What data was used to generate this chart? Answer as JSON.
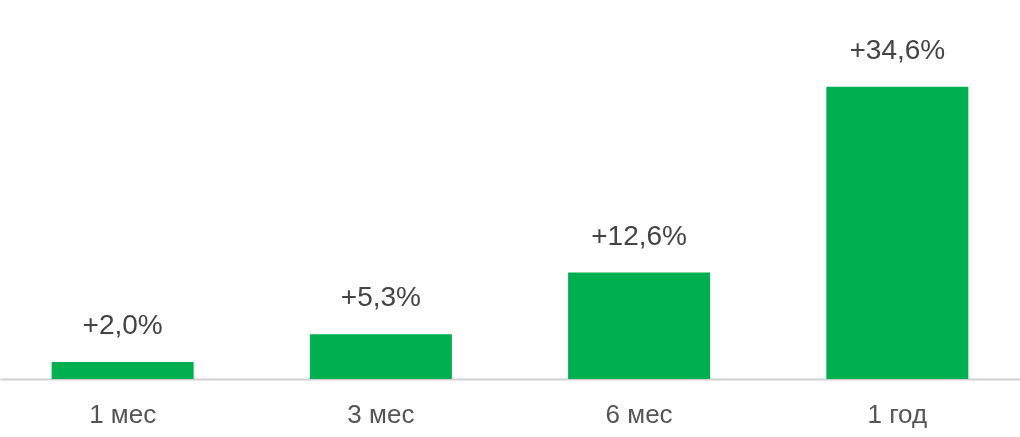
{
  "chart_data": {
    "type": "bar",
    "categories": [
      "1 мес",
      "3 мес",
      "6 мес",
      "1 год"
    ],
    "values": [
      2.0,
      5.3,
      12.6,
      34.6
    ],
    "value_labels": [
      "+2,0%",
      "+5,3%",
      "+12,6%",
      "+34,6%"
    ],
    "color": "#00b050",
    "grid": false
  }
}
